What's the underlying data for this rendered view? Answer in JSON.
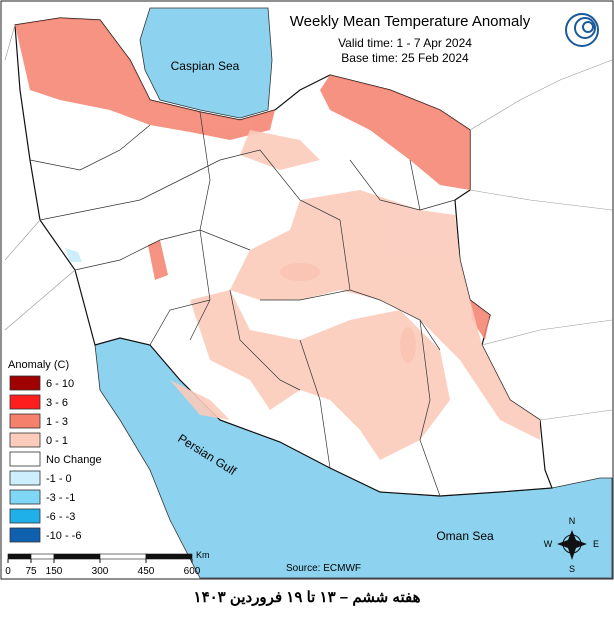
{
  "header": {
    "title": "Weekly Mean Temperature Anomaly",
    "valid_time": "Valid time: 1 - 7 Apr 2024",
    "base_time": "Base time: 25 Feb 2024"
  },
  "legend": {
    "title": "Anomaly (C)",
    "items": [
      {
        "label": "6 - 10",
        "color": "#a00000"
      },
      {
        "label": "3 - 6",
        "color": "#ff1e1e"
      },
      {
        "label": "1 - 3",
        "color": "#f5806c"
      },
      {
        "label": "0 - 1",
        "color": "#fbcbbb"
      },
      {
        "label": "No Change",
        "color": "#ffffff"
      },
      {
        "label": "-1 - 0",
        "color": "#cdeefc"
      },
      {
        "label": "-3 - -1",
        "color": "#80d6f5"
      },
      {
        "label": "-6 - -3",
        "color": "#1fb0ea"
      },
      {
        "label": "-10 - -6",
        "color": "#1060b0"
      }
    ]
  },
  "water_labels": {
    "caspian": "Caspian Sea",
    "gulf": "Persian Gulf",
    "oman": "Oman Sea"
  },
  "source": "Source: ECMWF",
  "scale": {
    "ticks": [
      0,
      75,
      150,
      300,
      450,
      600
    ],
    "unit": "Km"
  },
  "compass": {
    "n": "N",
    "e": "E",
    "s": "S",
    "w": "W"
  },
  "caption": "هفته ششم – ۱۳ تا ۱۹ فروردین ۱۴۰۳"
}
